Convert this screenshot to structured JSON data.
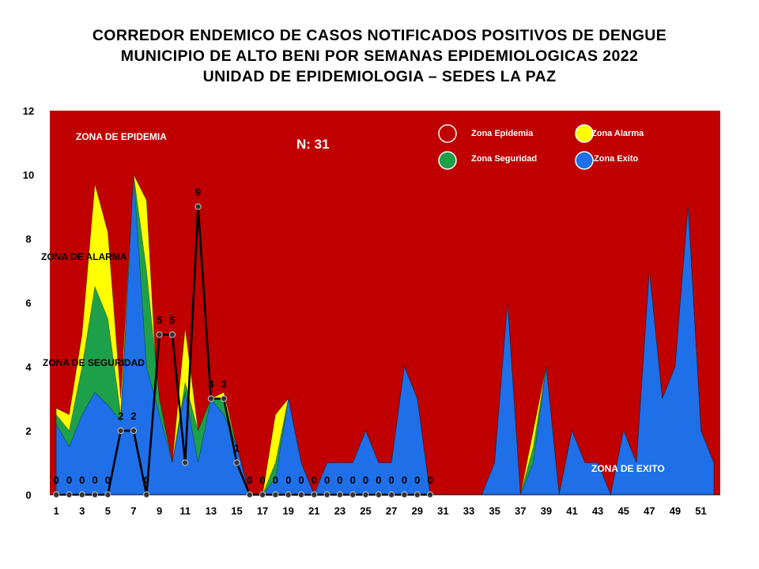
{
  "title_lines": [
    "CORREDOR ENDEMICO DE CASOS NOTIFICADOS POSITIVOS DE DENGUE",
    "MUNICIPIO DE ALTO BENI POR SEMANAS EPIDEMIOLOGICAS 2022",
    "UNIDAD DE EPIDEMIOLOGIA – SEDES LA PAZ"
  ],
  "n_label": "N: 31",
  "colors": {
    "epidemia": "#c00000",
    "alarma": "#ffff00",
    "seguridad": "#1ea04a",
    "exito": "#1f6fe8",
    "cases_line": "#000000"
  },
  "zone_labels": {
    "epidemia": "ZONA DE EPIDEMIA",
    "alarma": "ZONA DE ALARMA",
    "seguridad": "ZONA DE  SEGURIDAD",
    "exito": "ZONA DE  EXITO"
  },
  "legend": [
    {
      "name": "Zona Epidemia",
      "color": "#c00000"
    },
    {
      "name": "Zona Alarma",
      "color": "#ffff00"
    },
    {
      "name": "Zona Seguridad",
      "color": "#1ea04a"
    },
    {
      "name": "Zona Exito",
      "color": "#1f6fe8"
    }
  ],
  "chart_data": {
    "type": "area",
    "ylim": [
      0,
      12
    ],
    "yticks": [
      0,
      2,
      4,
      6,
      8,
      10,
      12
    ],
    "x": [
      1,
      2,
      3,
      4,
      5,
      6,
      7,
      8,
      9,
      10,
      11,
      12,
      13,
      14,
      15,
      16,
      17,
      18,
      19,
      20,
      21,
      22,
      23,
      24,
      25,
      26,
      27,
      28,
      29,
      30,
      31,
      32,
      33,
      34,
      35,
      36,
      37,
      38,
      39,
      40,
      41,
      42,
      43,
      44,
      45,
      46,
      47,
      48,
      49,
      50,
      51,
      52
    ],
    "xtick_labels": [
      "1",
      "3",
      "5",
      "7",
      "9",
      "11",
      "13",
      "15",
      "17",
      "19",
      "21",
      "23",
      "25",
      "27",
      "29",
      "31",
      "33",
      "35",
      "37",
      "39",
      "41",
      "43",
      "45",
      "47",
      "49",
      "51"
    ],
    "epidemia_ceiling": 12,
    "series": [
      {
        "name": "Zona Alarma",
        "values": [
          2.7,
          2.5,
          5.0,
          9.7,
          8.2,
          3.0,
          10.0,
          9.2,
          2.0,
          1.0,
          5.2,
          2.0,
          3.0,
          3.2,
          1.5,
          0,
          0,
          2.5,
          3.0,
          1.0,
          0,
          1.0,
          1.0,
          1.0,
          2.0,
          1.0,
          1.0,
          4.0,
          3.0,
          0,
          0,
          0,
          0,
          0,
          1.0,
          6.0,
          0,
          2.0,
          4.0,
          0,
          2.0,
          1.0,
          1.0,
          0,
          2.0,
          1.0,
          7.0,
          3.0,
          4.0,
          9.0,
          2.0,
          1.0
        ]
      },
      {
        "name": "Zona Seguridad",
        "values": [
          2.5,
          2.0,
          4.0,
          6.5,
          5.5,
          2.5,
          10.0,
          7.0,
          3.0,
          1.0,
          3.5,
          2.0,
          3.0,
          3.0,
          1.5,
          0,
          0,
          1.0,
          3.0,
          1.0,
          0,
          1.0,
          1.0,
          1.0,
          2.0,
          1.0,
          1.0,
          4.0,
          3.0,
          0,
          0,
          0,
          0,
          0,
          1.0,
          6.0,
          0,
          1.5,
          4.0,
          0,
          2.0,
          1.0,
          1.0,
          0,
          2.0,
          1.0,
          7.0,
          3.0,
          4.0,
          9.0,
          2.0,
          1.0
        ]
      },
      {
        "name": "Zona Exito",
        "values": [
          2.2,
          1.5,
          2.5,
          3.2,
          2.8,
          2.3,
          10.0,
          4.0,
          2.5,
          1.0,
          3.2,
          1.0,
          3.0,
          2.5,
          1.5,
          0,
          0,
          0.5,
          3.0,
          1.0,
          0,
          1.0,
          1.0,
          1.0,
          2.0,
          1.0,
          1.0,
          4.0,
          3.0,
          0,
          0,
          0,
          0,
          0,
          1.0,
          6.0,
          0,
          1.0,
          4.0,
          0,
          2.0,
          1.0,
          1.0,
          0,
          2.0,
          1.0,
          7.0,
          3.0,
          4.0,
          9.0,
          2.0,
          1.0
        ]
      }
    ],
    "cases": {
      "x": [
        1,
        2,
        3,
        4,
        5,
        6,
        7,
        8,
        9,
        10,
        11,
        12,
        13,
        14,
        15,
        16,
        17,
        18,
        19,
        20,
        21,
        22,
        23,
        24,
        25,
        26,
        27,
        28,
        29,
        30
      ],
      "values": [
        0,
        0,
        0,
        0,
        0,
        2,
        2,
        0,
        5,
        5,
        1,
        9,
        3,
        3,
        1,
        0,
        0,
        0,
        0,
        0,
        0,
        0,
        0,
        0,
        0,
        0,
        0,
        0,
        0,
        0
      ],
      "labels": [
        "0",
        "0",
        "0",
        "0",
        "0",
        "2",
        "2",
        "0",
        "5",
        "5",
        "",
        "9",
        "3",
        "3",
        "1",
        "0",
        "0",
        "0",
        "0",
        "0",
        "0",
        "0",
        "0",
        "0",
        "0",
        "0",
        "0",
        "0",
        "0",
        "0"
      ]
    }
  }
}
